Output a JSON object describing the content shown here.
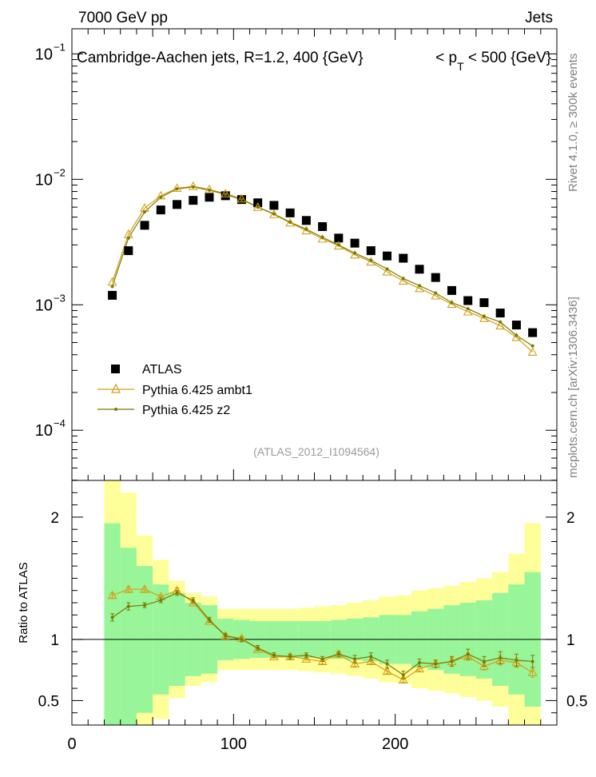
{
  "header": {
    "left": "7000 GeV pp",
    "right": "Jets"
  },
  "side_text": {
    "rivet": "Rivet 4.1.0, ≥ 300k events",
    "mcplots": "mcplots.cern.ch [arXiv:1306.3436]"
  },
  "chart_data": [
    {
      "type": "scatter",
      "yscale": "log",
      "title": "Cambridge-Aachen jets, R=1.2, 400 {GeV}",
      "title_right_prefix": "< p",
      "title_right_sub": "T",
      "title_right_suffix": " < 500 {GeV}",
      "watermark": "(ATLAS_2012_I1094564)",
      "xlim": [
        0,
        300
      ],
      "ylim_log10": [
        -4.4,
        -0.8
      ],
      "ytick_labels": [
        {
          "base": "10",
          "exp": "−1",
          "value": 0.1
        },
        {
          "base": "10",
          "exp": "−2",
          "value": 0.01
        },
        {
          "base": "10",
          "exp": "−3",
          "value": 0.001
        },
        {
          "base": "10",
          "exp": "−4",
          "value": 0.0001
        }
      ],
      "x": [
        25,
        35,
        45,
        55,
        65,
        75,
        85,
        95,
        105,
        115,
        125,
        135,
        145,
        155,
        165,
        175,
        185,
        195,
        205,
        215,
        225,
        235,
        245,
        255,
        265,
        275,
        285
      ],
      "series": [
        {
          "name": "ATLAS",
          "color": "#000000",
          "marker": "square",
          "values": [
            0.00119,
            0.0027,
            0.0043,
            0.0057,
            0.0063,
            0.0068,
            0.0072,
            0.0074,
            0.0069,
            0.0065,
            0.0062,
            0.0054,
            0.0047,
            0.0042,
            0.0034,
            0.0031,
            0.0027,
            0.00245,
            0.00235,
            0.00192,
            0.00165,
            0.0013,
            0.00108,
            0.00104,
            0.00086,
            0.00069,
            0.0006
          ]
        },
        {
          "name": "Pythia 6.425 ambt1",
          "color": "#d4a017",
          "marker": "triangle",
          "values": [
            0.00152,
            0.00365,
            0.0059,
            0.0074,
            0.0085,
            0.0088,
            0.0083,
            0.0077,
            0.007,
            0.006,
            0.00525,
            0.0045,
            0.0039,
            0.00335,
            0.00295,
            0.0025,
            0.0022,
            0.00183,
            0.00155,
            0.00135,
            0.00118,
            0.00101,
            0.00088,
            0.00078,
            0.00068,
            0.00055,
            0.00042
          ]
        },
        {
          "name": "Pythia 6.425 z2",
          "color": "#7a7a00",
          "marker": "dot",
          "values": [
            0.0014,
            0.0034,
            0.0055,
            0.0072,
            0.0084,
            0.0087,
            0.0082,
            0.0076,
            0.0069,
            0.006,
            0.0053,
            0.00455,
            0.004,
            0.00345,
            0.003,
            0.00258,
            0.00226,
            0.00193,
            0.00162,
            0.00142,
            0.00124,
            0.00104,
            0.00093,
            0.00081,
            0.00073,
            0.00057,
            0.00047
          ]
        }
      ],
      "legend_position": "left"
    },
    {
      "type": "ratio",
      "ylabel": "Ratio to ATLAS",
      "xlim": [
        0,
        300
      ],
      "ylim": [
        0.3,
        2.3
      ],
      "yticks": [
        0.5,
        1,
        2
      ],
      "ytick_labels": [
        "0.5",
        "1",
        "2"
      ],
      "xticks": [
        0,
        100,
        200
      ],
      "xtick_labels": [
        "0",
        "100",
        "200"
      ],
      "bins": [
        [
          20,
          30
        ],
        [
          30,
          40
        ],
        [
          40,
          50
        ],
        [
          50,
          60
        ],
        [
          60,
          70
        ],
        [
          70,
          80
        ],
        [
          80,
          90
        ],
        [
          90,
          100
        ],
        [
          100,
          110
        ],
        [
          110,
          120
        ],
        [
          120,
          130
        ],
        [
          130,
          140
        ],
        [
          140,
          150
        ],
        [
          150,
          160
        ],
        [
          160,
          170
        ],
        [
          170,
          180
        ],
        [
          180,
          190
        ],
        [
          190,
          200
        ],
        [
          200,
          210
        ],
        [
          210,
          220
        ],
        [
          220,
          230
        ],
        [
          230,
          240
        ],
        [
          240,
          250
        ],
        [
          250,
          260
        ],
        [
          260,
          270
        ],
        [
          270,
          280
        ],
        [
          280,
          290
        ]
      ],
      "band_green_halfwidth": [
        0.95,
        0.75,
        0.6,
        0.45,
        0.38,
        0.3,
        0.28,
        0.17,
        0.16,
        0.15,
        0.15,
        0.15,
        0.15,
        0.15,
        0.16,
        0.17,
        0.18,
        0.2,
        0.2,
        0.23,
        0.25,
        0.28,
        0.3,
        0.32,
        0.38,
        0.45,
        0.55
      ],
      "band_yellow_halfwidth": [
        1.35,
        1.2,
        0.85,
        0.65,
        0.48,
        0.38,
        0.35,
        0.25,
        0.25,
        0.25,
        0.25,
        0.25,
        0.26,
        0.27,
        0.28,
        0.3,
        0.32,
        0.35,
        0.36,
        0.4,
        0.42,
        0.44,
        0.47,
        0.5,
        0.55,
        0.7,
        0.95
      ],
      "series": [
        {
          "name": "Pythia 6.425 ambt1",
          "color": "#d4a017",
          "marker": "triangle",
          "values": [
            1.36,
            1.41,
            1.41,
            1.35,
            1.4,
            1.3,
            1.15,
            1.03,
            1.01,
            0.92,
            0.86,
            0.86,
            0.84,
            0.82,
            0.88,
            0.8,
            0.82,
            0.74,
            0.67,
            0.76,
            0.8,
            0.82,
            0.86,
            0.78,
            0.83,
            0.81,
            0.73
          ],
          "errors": [
            0.02,
            0.02,
            0.02,
            0.01,
            0.02,
            0.01,
            0.01,
            0.01,
            0.01,
            0.01,
            0.01,
            0.01,
            0.01,
            0.02,
            0.02,
            0.02,
            0.02,
            0.02,
            0.02,
            0.02,
            0.03,
            0.03,
            0.03,
            0.03,
            0.04,
            0.04,
            0.04
          ]
        },
        {
          "name": "Pythia 6.425 z2",
          "color": "#7a7a00",
          "marker": "dot",
          "values": [
            1.18,
            1.27,
            1.28,
            1.32,
            1.38,
            1.32,
            1.16,
            1.03,
            1.0,
            0.93,
            0.87,
            0.86,
            0.87,
            0.84,
            0.88,
            0.84,
            0.86,
            0.8,
            0.71,
            0.81,
            0.8,
            0.82,
            0.88,
            0.82,
            0.85,
            0.83,
            0.82
          ],
          "errors": [
            0.03,
            0.03,
            0.02,
            0.02,
            0.02,
            0.02,
            0.02,
            0.02,
            0.02,
            0.02,
            0.02,
            0.02,
            0.02,
            0.02,
            0.02,
            0.03,
            0.03,
            0.03,
            0.03,
            0.03,
            0.03,
            0.04,
            0.04,
            0.04,
            0.05,
            0.05,
            0.05
          ]
        }
      ]
    }
  ]
}
